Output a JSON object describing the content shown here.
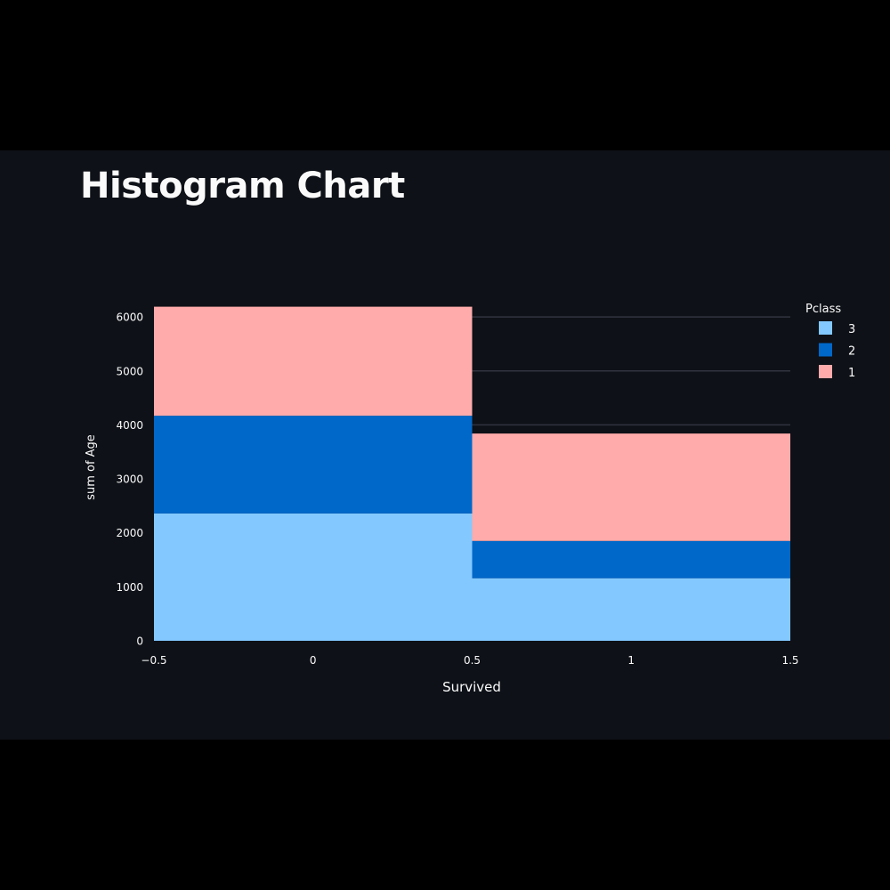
{
  "page": {
    "title": "Histogram Chart"
  },
  "chart_data": {
    "type": "bar",
    "barmode": "stack",
    "x": [
      0,
      1
    ],
    "bin_edges": [
      -0.5,
      0.5,
      1.5
    ],
    "xlabel": "Survived",
    "ylabel": "sum of Age",
    "xlim": [
      -0.5,
      1.5
    ],
    "ylim": [
      0,
      6200
    ],
    "x_ticks": [
      "−0.5",
      "0",
      "0.5",
      "1",
      "1.5"
    ],
    "x_tick_values": [
      -0.5,
      0,
      0.5,
      1,
      1.5
    ],
    "y_ticks": [
      0,
      1000,
      2000,
      3000,
      4000,
      5000,
      6000
    ],
    "grid": true,
    "legend_title": "Pclass",
    "legend_position": "top-right",
    "series": [
      {
        "name": "3",
        "color": "#83c9ff",
        "values": [
          2360,
          1160
        ]
      },
      {
        "name": "2",
        "color": "#0068c9",
        "values": [
          1810,
          690
        ]
      },
      {
        "name": "1",
        "color": "#ffabab",
        "values": [
          2020,
          1990
        ]
      }
    ]
  },
  "colors": {
    "app_background": "#0e1117",
    "outer_background": "#000000",
    "text": "#fafafa",
    "grid": "#31333f"
  }
}
